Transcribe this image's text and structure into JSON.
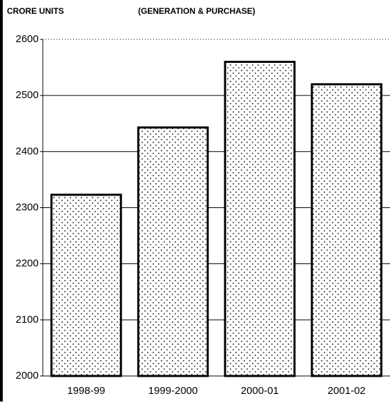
{
  "chart_data": {
    "type": "bar",
    "y_label": "CRORE UNITS",
    "title": "(GENERATION & PURCHASE)",
    "categories": [
      "1998-99",
      "1999-2000",
      "2000-01",
      "2001-02"
    ],
    "values": [
      2323,
      2443,
      2560,
      2520
    ],
    "color": "#ffffff",
    "ylim": [
      2000,
      2600
    ],
    "yticks": [
      2000,
      2100,
      2200,
      2300,
      2400,
      2500,
      2600
    ],
    "grid": true
  }
}
